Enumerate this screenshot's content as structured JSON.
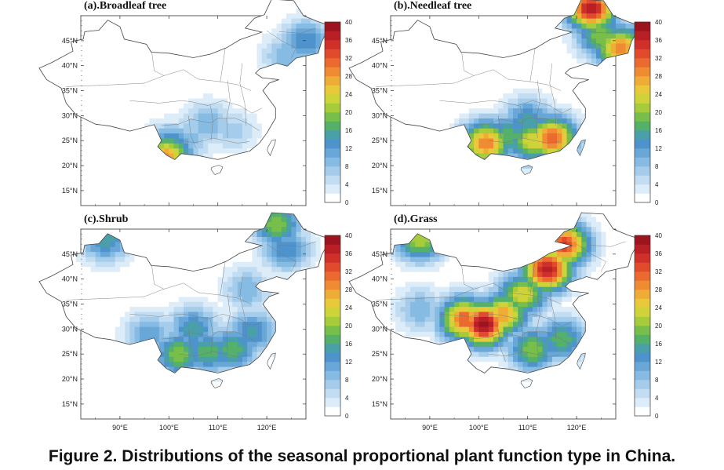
{
  "figure": {
    "caption": "Figure 2. Distributions of the seasonal proportional plant function type in China."
  },
  "colorbar": {
    "levels": [
      0,
      2,
      4,
      6,
      8,
      10,
      12,
      14,
      16,
      18,
      20,
      22,
      24,
      26,
      28,
      30,
      32,
      34,
      36,
      38,
      40
    ],
    "labels": [
      "0",
      "4",
      "8",
      "12",
      "16",
      "20",
      "24",
      "28",
      "32",
      "36",
      "40"
    ],
    "colors": [
      "#ffffff",
      "#dcecf8",
      "#c2ddf2",
      "#a5cdeb",
      "#86bbe3",
      "#68a7d8",
      "#4f93cc",
      "#4aa0a8",
      "#55b06a",
      "#77be4a",
      "#a6cc3c",
      "#cfd33a",
      "#e8c93a",
      "#efac36",
      "#ef8b33",
      "#eb6a30",
      "#e24a2c",
      "#d0302a",
      "#b82025",
      "#9c1420"
    ]
  },
  "axes": {
    "lon_ticks": [
      "90°E",
      "100°E",
      "110°E",
      "120°E"
    ],
    "lat_ticks": [
      "15°N",
      "20°N",
      "25°N",
      "30°N",
      "35°N",
      "40°N",
      "45°N"
    ]
  },
  "chart_data": [
    {
      "type": "heatmap",
      "title": "(a).Broadleaf tree",
      "xlabel": "",
      "ylabel": "",
      "xlim": [
        82,
        128
      ],
      "ylim": [
        12,
        50
      ],
      "value_range": [
        0,
        40
      ],
      "hotspots": [
        {
          "lon": 99.5,
          "lat": 22.0,
          "value": 28
        },
        {
          "lon": 100.5,
          "lat": 23.5,
          "value": 18
        },
        {
          "lon": 104,
          "lat": 25.5,
          "value": 9
        },
        {
          "lon": 108,
          "lat": 28.5,
          "value": 10
        },
        {
          "lon": 113,
          "lat": 27,
          "value": 7
        },
        {
          "lon": 128,
          "lat": 45,
          "value": 14
        },
        {
          "lon": 124,
          "lat": 42,
          "value": 10
        }
      ]
    },
    {
      "type": "heatmap",
      "title": "(b).Needleaf tree",
      "xlabel": "",
      "ylabel": "",
      "xlim": [
        82,
        128
      ],
      "ylim": [
        12,
        50
      ],
      "value_range": [
        0,
        40
      ],
      "hotspots": [
        {
          "lon": 123,
          "lat": 51.5,
          "value": 38
        },
        {
          "lon": 125,
          "lat": 46,
          "value": 20
        },
        {
          "lon": 129,
          "lat": 43.5,
          "value": 30
        },
        {
          "lon": 101.5,
          "lat": 24.5,
          "value": 30
        },
        {
          "lon": 111,
          "lat": 25,
          "value": 24
        },
        {
          "lon": 115,
          "lat": 25.5,
          "value": 32
        },
        {
          "lon": 106,
          "lat": 26,
          "value": 18
        },
        {
          "lon": 110,
          "lat": 29,
          "value": 16
        }
      ]
    },
    {
      "type": "heatmap",
      "title": "(c).Shrub",
      "xlabel": "",
      "ylabel": "",
      "xlim": [
        82,
        128
      ],
      "ylim": [
        12,
        50
      ],
      "value_range": [
        0,
        40
      ],
      "hotspots": [
        {
          "lon": 102,
          "lat": 25,
          "value": 20
        },
        {
          "lon": 108,
          "lat": 25.5,
          "value": 18
        },
        {
          "lon": 113,
          "lat": 26,
          "value": 18
        },
        {
          "lon": 105,
          "lat": 30,
          "value": 16
        },
        {
          "lon": 117,
          "lat": 29.5,
          "value": 15
        },
        {
          "lon": 122,
          "lat": 51,
          "value": 20
        },
        {
          "lon": 124,
          "lat": 46,
          "value": 14
        },
        {
          "lon": 96,
          "lat": 29,
          "value": 12
        },
        {
          "lon": 87,
          "lat": 48,
          "value": 16
        },
        {
          "lon": 116,
          "lat": 38,
          "value": 10
        }
      ]
    },
    {
      "type": "heatmap",
      "title": "(d).Grass",
      "xlabel": "",
      "ylabel": "",
      "xlim": [
        82,
        128
      ],
      "ylim": [
        12,
        50
      ],
      "value_range": [
        0,
        40
      ],
      "hotspots": [
        {
          "lon": 101,
          "lat": 31,
          "value": 40
        },
        {
          "lon": 97,
          "lat": 32,
          "value": 32
        },
        {
          "lon": 105,
          "lat": 33,
          "value": 28
        },
        {
          "lon": 114,
          "lat": 42,
          "value": 38
        },
        {
          "lon": 117.5,
          "lat": 47,
          "value": 34
        },
        {
          "lon": 109,
          "lat": 37,
          "value": 24
        },
        {
          "lon": 111,
          "lat": 26,
          "value": 20
        },
        {
          "lon": 117,
          "lat": 28,
          "value": 18
        },
        {
          "lon": 88,
          "lat": 48,
          "value": 22
        },
        {
          "lon": 88,
          "lat": 34,
          "value": 10
        }
      ]
    }
  ]
}
